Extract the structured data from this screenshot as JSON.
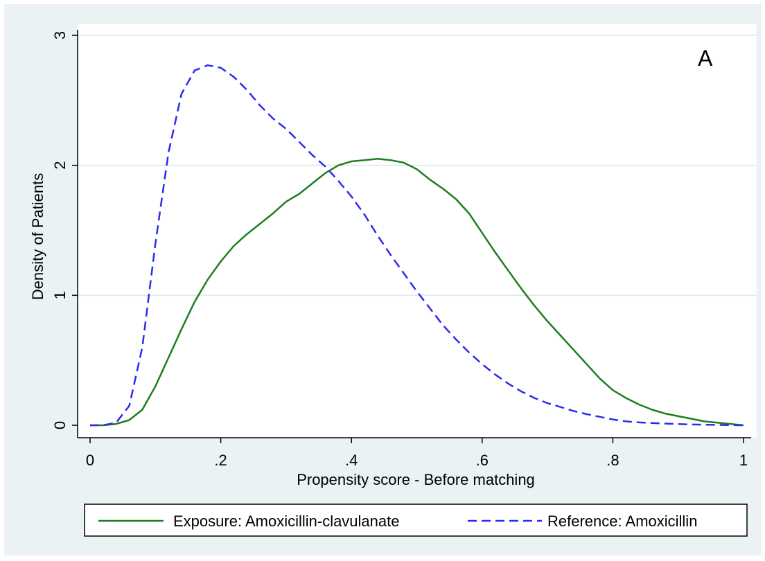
{
  "chart_data": {
    "type": "line",
    "title": "",
    "panel_label": "A",
    "xlabel": "Propensity score - Before matching",
    "ylabel": "Density of Patients",
    "xlim": [
      0,
      1
    ],
    "ylim": [
      0,
      3
    ],
    "xticks": [
      0,
      0.2,
      0.4,
      0.6,
      0.8,
      1
    ],
    "xtick_labels": [
      "0",
      ".2",
      ".4",
      ".6",
      ".8",
      "1"
    ],
    "yticks": [
      0,
      1,
      2,
      3
    ],
    "ytick_labels": [
      "0",
      "1",
      "2",
      "3"
    ],
    "grid": "horizontal",
    "legend_position": "bottom",
    "colors": {
      "plot_bg": "#ffffff",
      "outer_bg": "#eaf2f3",
      "grid": "#dce6e8"
    },
    "series": [
      {
        "name": "Exposure: Amoxicillin-clavulanate",
        "color": "#1e7d1e",
        "dash": "solid",
        "x": [
          0,
          0.02,
          0.04,
          0.06,
          0.08,
          0.1,
          0.12,
          0.14,
          0.16,
          0.18,
          0.2,
          0.22,
          0.24,
          0.26,
          0.28,
          0.3,
          0.32,
          0.34,
          0.36,
          0.38,
          0.4,
          0.42,
          0.44,
          0.46,
          0.48,
          0.5,
          0.52,
          0.54,
          0.56,
          0.58,
          0.6,
          0.62,
          0.64,
          0.66,
          0.68,
          0.7,
          0.72,
          0.74,
          0.76,
          0.78,
          0.8,
          0.82,
          0.84,
          0.86,
          0.88,
          0.9,
          0.92,
          0.94,
          0.96,
          0.98,
          1.0
        ],
        "y": [
          0.0,
          0.0,
          0.01,
          0.04,
          0.12,
          0.3,
          0.52,
          0.74,
          0.95,
          1.12,
          1.26,
          1.38,
          1.47,
          1.55,
          1.63,
          1.72,
          1.78,
          1.86,
          1.94,
          2.0,
          2.03,
          2.04,
          2.05,
          2.04,
          2.02,
          1.97,
          1.89,
          1.82,
          1.74,
          1.63,
          1.48,
          1.33,
          1.19,
          1.05,
          0.92,
          0.8,
          0.69,
          0.58,
          0.47,
          0.36,
          0.27,
          0.21,
          0.16,
          0.12,
          0.09,
          0.07,
          0.05,
          0.03,
          0.02,
          0.01,
          0.0
        ]
      },
      {
        "name": "Reference: Amoxicillin",
        "color": "#2b2bef",
        "dash": "dashed",
        "x": [
          0,
          0.02,
          0.04,
          0.06,
          0.08,
          0.1,
          0.12,
          0.14,
          0.16,
          0.18,
          0.2,
          0.22,
          0.24,
          0.26,
          0.28,
          0.3,
          0.32,
          0.34,
          0.36,
          0.38,
          0.4,
          0.42,
          0.44,
          0.46,
          0.48,
          0.5,
          0.52,
          0.54,
          0.56,
          0.58,
          0.6,
          0.62,
          0.64,
          0.66,
          0.68,
          0.7,
          0.72,
          0.74,
          0.76,
          0.78,
          0.8,
          0.82,
          0.84,
          0.86,
          0.88,
          0.9,
          0.92,
          0.94,
          0.96,
          0.98,
          1.0
        ],
        "y": [
          0.0,
          0.0,
          0.02,
          0.15,
          0.6,
          1.4,
          2.1,
          2.55,
          2.73,
          2.77,
          2.75,
          2.68,
          2.58,
          2.46,
          2.36,
          2.28,
          2.18,
          2.08,
          1.99,
          1.88,
          1.76,
          1.62,
          1.46,
          1.31,
          1.17,
          1.03,
          0.9,
          0.77,
          0.66,
          0.56,
          0.47,
          0.39,
          0.32,
          0.26,
          0.21,
          0.17,
          0.14,
          0.11,
          0.085,
          0.065,
          0.045,
          0.03,
          0.022,
          0.017,
          0.013,
          0.009,
          0.006,
          0.004,
          0.003,
          0.001,
          0.0
        ]
      }
    ]
  }
}
